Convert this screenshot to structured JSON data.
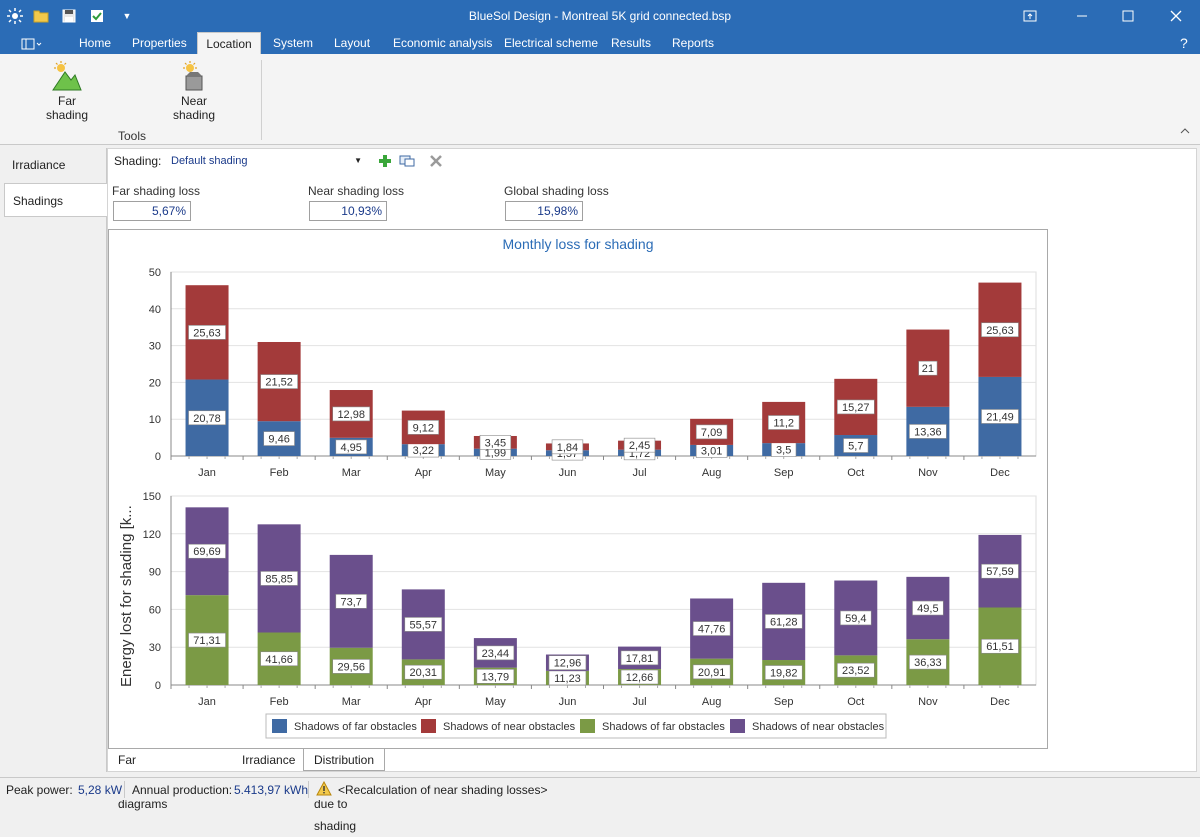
{
  "window": {
    "title": "BlueSol Design - Montreal 5K grid connected.bsp",
    "help": "?"
  },
  "menu": {
    "tabs": [
      {
        "label": "Home"
      },
      {
        "label": "Properties"
      },
      {
        "label": "Location"
      },
      {
        "label": "System"
      },
      {
        "label": "Layout"
      },
      {
        "label": "Economic analysis"
      },
      {
        "label": "Electrical scheme"
      },
      {
        "label": "Results"
      },
      {
        "label": "Reports"
      }
    ],
    "active": "Location"
  },
  "ribbon": {
    "far_shading": "Far shading",
    "near_shading": "Near shading",
    "group": "Tools"
  },
  "nav": {
    "items": [
      {
        "label": "Irradiance location"
      },
      {
        "label": "Shadings"
      }
    ]
  },
  "shading": {
    "label": "Shading:",
    "selected": "Default shading"
  },
  "losses": {
    "far_label": "Far shading loss",
    "far_value": "5,67%",
    "near_label": "Near shading loss",
    "near_value": "10,93%",
    "global_label": "Global shading loss",
    "global_value": "15,98%"
  },
  "colors": {
    "far1": "#3f6aa3",
    "near1": "#a33a3a",
    "far2": "#7b9a45",
    "near2": "#6a4f8c",
    "title": "#2b6cb6"
  },
  "chart_data": [
    {
      "type": "bar",
      "stacked": true,
      "title": "Monthly loss for shading",
      "categories": [
        "Jan",
        "Feb",
        "Mar",
        "Apr",
        "May",
        "Jun",
        "Jul",
        "Aug",
        "Sep",
        "Oct",
        "Nov",
        "Dec"
      ],
      "ylim": [
        0,
        50
      ],
      "yticks": [
        0,
        10,
        20,
        30,
        40,
        50
      ],
      "series": [
        {
          "name": "Shadows of far obstacles",
          "values": [
            20.78,
            9.46,
            4.95,
            3.22,
            1.99,
            1.57,
            1.72,
            3.01,
            3.5,
            5.7,
            13.36,
            21.49
          ],
          "labels": [
            "20,78",
            "9,46",
            "4,95",
            "3,22",
            "1,99",
            "1,57",
            "1,72",
            "3,01",
            "3,5",
            "5,7",
            "13,36",
            "21,49"
          ]
        },
        {
          "name": "Shadows of near obstacles",
          "values": [
            25.63,
            21.52,
            12.98,
            9.12,
            3.45,
            1.84,
            2.45,
            7.09,
            11.2,
            15.27,
            21,
            25.63
          ],
          "labels": [
            "25,63",
            "21,52",
            "12,98",
            "9,12",
            "3,45",
            "1,84",
            "2,45",
            "7,09",
            "11,2",
            "15,27",
            "21",
            "25,63"
          ]
        }
      ]
    },
    {
      "type": "bar",
      "stacked": true,
      "ylabel": "Energy lost for shading [k...",
      "categories": [
        "Jan",
        "Feb",
        "Mar",
        "Apr",
        "May",
        "Jun",
        "Jul",
        "Aug",
        "Sep",
        "Oct",
        "Nov",
        "Dec"
      ],
      "ylim": [
        0,
        150
      ],
      "yticks": [
        0,
        30,
        60,
        90,
        120,
        150
      ],
      "series": [
        {
          "name": "Shadows of far obstacles",
          "values": [
            71.31,
            41.66,
            29.56,
            20.31,
            13.79,
            11.23,
            12.66,
            20.91,
            19.82,
            23.52,
            36.33,
            61.51
          ],
          "labels": [
            "71,31",
            "41,66",
            "29,56",
            "20,31",
            "13,79",
            "11,23",
            "12,66",
            "20,91",
            "19,82",
            "23,52",
            "36,33",
            "61,51"
          ]
        },
        {
          "name": "Shadows of near obstacles",
          "values": [
            69.69,
            85.85,
            73.7,
            55.57,
            23.44,
            12.96,
            17.81,
            47.76,
            61.28,
            59.4,
            49.5,
            57.59
          ],
          "labels": [
            "69,69",
            "85,85",
            "73,7",
            "55,57",
            "23,44",
            "12,96",
            "17,81",
            "47,76",
            "61,28",
            "59,4",
            "49,5",
            "57,59"
          ]
        }
      ]
    }
  ],
  "legend": [
    "Shadows of far obstacles",
    "Shadows of near obstacles",
    "Shadows of far obstacles",
    "Shadows of near obstacles"
  ],
  "bottom_tabs": [
    {
      "label": "Far shading diagrams"
    },
    {
      "label": "Irradiance"
    },
    {
      "label": "Distribution of losses due to shading"
    }
  ],
  "status": {
    "peak_label": "Peak power:",
    "peak_value": "5,28 kW",
    "annual_label": "Annual production:",
    "annual_value": "5.413,97 kWh",
    "message": "<Recalculation of near shading losses>"
  }
}
